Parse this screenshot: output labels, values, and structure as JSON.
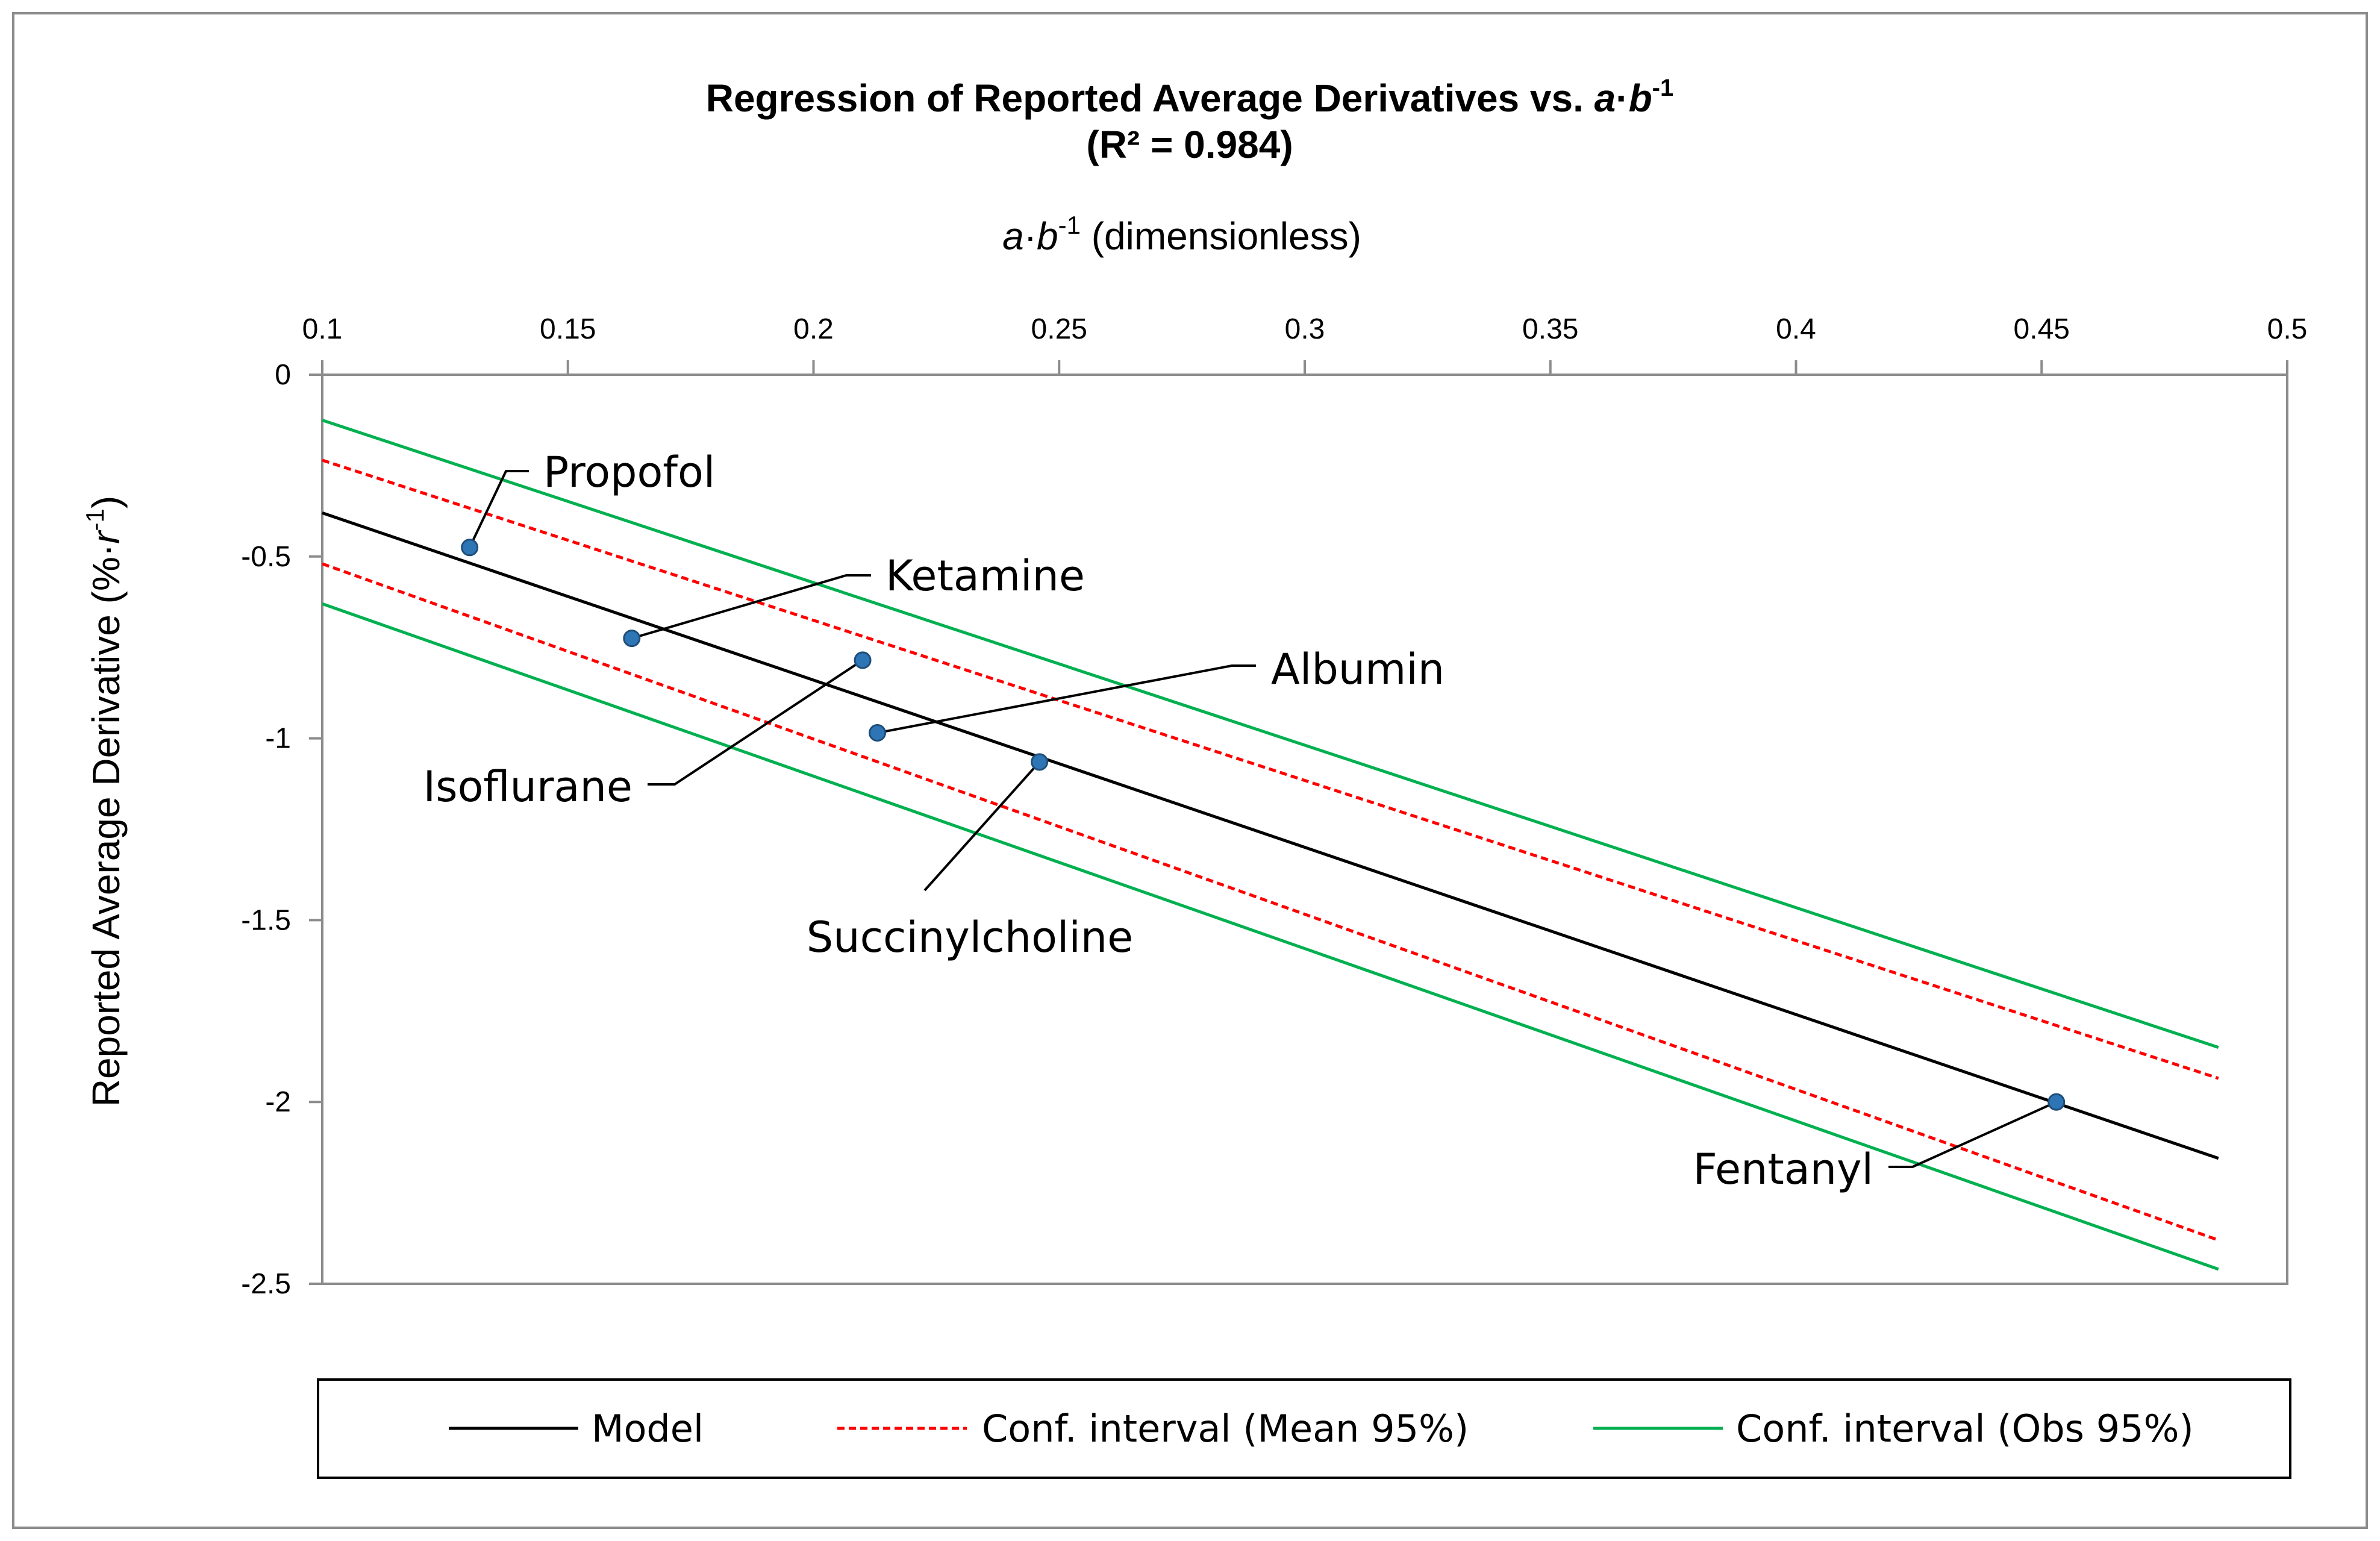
{
  "chart_data": {
    "type": "line",
    "title_main": "Regression of Reported Average Derivatives vs. ",
    "title_a": "a",
    "title_dot": "·",
    "title_b": "b",
    "title_sup": "-1",
    "subtitle": "(R² = 0.984)",
    "xlabel_a": "a",
    "xlabel_dot": "·",
    "xlabel_b": "b",
    "xlabel_sup": "-1",
    "xlabel_rest": " (dimensionless)",
    "ylabel_main": "Reported Average Derivative (%·",
    "ylabel_r": "r",
    "ylabel_sup": "-1",
    "ylabel_close": ")",
    "xlim": [
      0.1,
      0.5
    ],
    "ylim": [
      -2.5,
      0
    ],
    "x_ticks": [
      0.1,
      0.15,
      0.2,
      0.25,
      0.3,
      0.35,
      0.4,
      0.45,
      0.5
    ],
    "x_tick_labels": [
      "0.1",
      "0.15",
      "0.2",
      "0.25",
      "0.3",
      "0.35",
      "0.4",
      "0.45",
      "0.5"
    ],
    "y_ticks": [
      0,
      -0.5,
      -1,
      -1.5,
      -2,
      -2.5
    ],
    "y_tick_labels": [
      "0",
      "-0.5",
      "-1",
      "-1.5",
      "-2",
      "-2.5"
    ],
    "x_axis_position": "top",
    "grid": false,
    "legend_position": "bottom",
    "series": [
      {
        "name": "Model",
        "color": "#000000",
        "dash": "solid",
        "x": [
          0.1,
          0.486
        ],
        "y": [
          -0.38,
          -2.155
        ]
      },
      {
        "name": "Conf. interval (Mean 95%)",
        "color": "#ff0000",
        "dash": "dashed",
        "x": [
          0.1,
          0.486
        ],
        "y": [
          -0.235,
          -1.935
        ]
      },
      {
        "name": "Conf. interval (Mean 95%)",
        "color": "#ff0000",
        "dash": "dashed",
        "x": [
          0.1,
          0.486
        ],
        "y": [
          -0.52,
          -2.38
        ]
      },
      {
        "name": "Conf. interval (Obs 95%)",
        "color": "#00b050",
        "dash": "solid",
        "x": [
          0.1,
          0.486
        ],
        "y": [
          -0.125,
          -1.85
        ]
      },
      {
        "name": "Conf. interval (Obs 95%)",
        "color": "#00b050",
        "dash": "solid",
        "x": [
          0.1,
          0.486
        ],
        "y": [
          -0.63,
          -2.46
        ]
      }
    ],
    "points": [
      {
        "label": "Propofol",
        "x": 0.13,
        "y": -0.475
      },
      {
        "label": "Ketamine",
        "x": 0.163,
        "y": -0.725
      },
      {
        "label": "Isoflurane",
        "x": 0.21,
        "y": -0.785
      },
      {
        "label": "Albumin",
        "x": 0.213,
        "y": -0.985
      },
      {
        "label": "Succinylcholine",
        "x": 0.246,
        "y": -1.065
      },
      {
        "label": "Fentanyl",
        "x": 0.453,
        "y": -2.0
      }
    ],
    "point_color": "#2e75b6",
    "legend": [
      {
        "label": "Model",
        "color": "#000000",
        "dash": "solid"
      },
      {
        "label": "Conf. interval (Mean 95%)",
        "color": "#ff0000",
        "dash": "dashed"
      },
      {
        "label": "Conf. interval (Obs 95%)",
        "color": "#00b050",
        "dash": "solid"
      }
    ]
  }
}
